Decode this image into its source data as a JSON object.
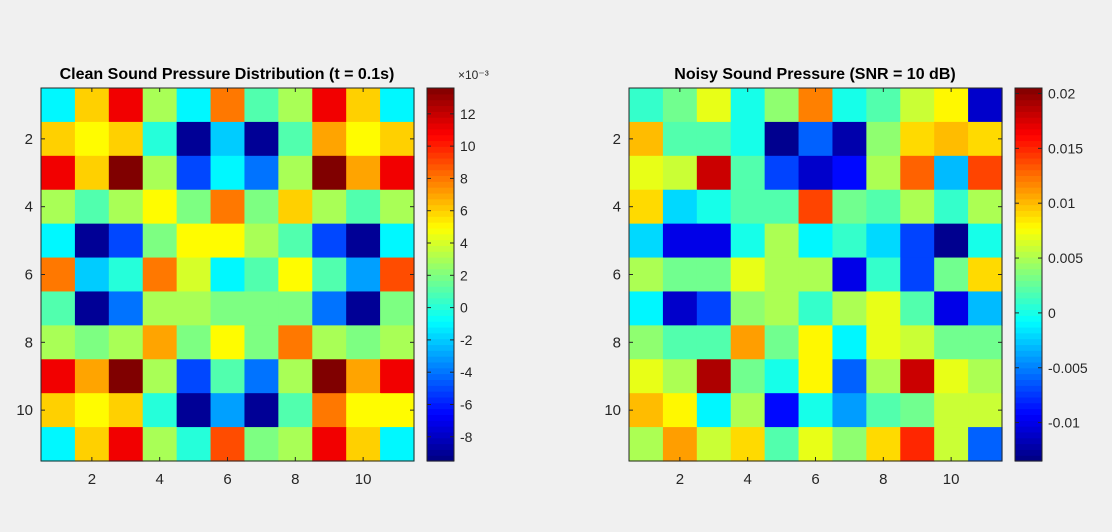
{
  "chart_data": [
    {
      "type": "heatmap",
      "title": "Clean Sound Pressure Distribution (t = 0.1s)",
      "xlabel": "",
      "ylabel": "",
      "x_ticks": [
        2,
        4,
        6,
        8,
        10
      ],
      "y_ticks": [
        2,
        4,
        6,
        8,
        10
      ],
      "colormap": "jet",
      "clim": [
        -9.5,
        13.6
      ],
      "colorbar_ticks": [
        12,
        10,
        8,
        6,
        4,
        2,
        0,
        -2,
        -4,
        -6,
        -8
      ],
      "colorbar_exponent": "×10⁻³",
      "values": [
        [
          -1,
          6,
          11,
          3,
          -1,
          8,
          1,
          3,
          11,
          6,
          -1
        ],
        [
          6,
          5,
          6,
          0,
          -9,
          -2,
          -9,
          1,
          7,
          5,
          6
        ],
        [
          11,
          6,
          14,
          3,
          -5,
          -1,
          -4,
          3,
          14,
          7,
          11
        ],
        [
          3,
          1,
          3,
          5,
          2,
          8,
          2,
          6,
          3,
          1,
          3
        ],
        [
          -1,
          -9,
          -5,
          2,
          5,
          5,
          3,
          1,
          -5,
          -9,
          -1
        ],
        [
          8,
          -2,
          0,
          8,
          4,
          -1,
          1,
          5,
          1,
          -3,
          9
        ],
        [
          1,
          -9,
          -4,
          3,
          3,
          2,
          2,
          2,
          -4,
          -9,
          2
        ],
        [
          3,
          2,
          3,
          7,
          2,
          5,
          2,
          8,
          3,
          2,
          3
        ],
        [
          11,
          7,
          14,
          3,
          -5,
          1,
          -4,
          3,
          14,
          7,
          11
        ],
        [
          6,
          5,
          6,
          0,
          -9,
          -3,
          -9,
          1,
          8,
          5,
          5
        ],
        [
          -1,
          6,
          11,
          3,
          0,
          9,
          2,
          3,
          11,
          6,
          -1
        ]
      ]
    },
    {
      "type": "heatmap",
      "title": "Noisy Sound Pressure (SNR = 10 dB)",
      "xlabel": "",
      "ylabel": "",
      "x_ticks": [
        2,
        4,
        6,
        8,
        10
      ],
      "y_ticks": [
        2,
        4,
        6,
        8,
        10
      ],
      "colormap": "jet",
      "clim": [
        -0.0135,
        0.0205
      ],
      "colorbar_ticks": [
        "0.02",
        "0.015",
        "0.01",
        "0.005",
        "0",
        "-0.005",
        "-0.01"
      ],
      "values": [
        [
          0.001,
          0.003,
          0.007,
          0.0,
          0.004,
          0.012,
          0.0,
          0.002,
          0.006,
          0.008,
          -0.011
        ],
        [
          0.01,
          0.002,
          0.002,
          0.0,
          -0.013,
          -0.006,
          -0.012,
          0.004,
          0.009,
          0.01,
          0.009
        ],
        [
          0.007,
          0.006,
          0.018,
          0.002,
          -0.007,
          -0.011,
          -0.009,
          0.005,
          0.013,
          -0.003,
          0.014
        ],
        [
          0.009,
          -0.002,
          0.0,
          0.002,
          0.002,
          0.014,
          0.003,
          0.002,
          0.005,
          0.001,
          0.005
        ],
        [
          -0.002,
          -0.01,
          -0.01,
          0.0,
          0.005,
          -0.001,
          0.001,
          -0.002,
          -0.007,
          -0.013,
          0.0
        ],
        [
          0.005,
          0.003,
          0.003,
          0.007,
          0.005,
          0.005,
          -0.01,
          0.001,
          -0.007,
          0.003,
          0.009
        ],
        [
          -0.001,
          -0.011,
          -0.007,
          0.004,
          0.005,
          0.001,
          0.005,
          0.007,
          0.002,
          -0.01,
          -0.003
        ],
        [
          0.004,
          0.002,
          0.002,
          0.011,
          0.003,
          0.008,
          -0.001,
          0.007,
          0.006,
          0.003,
          0.003
        ],
        [
          0.007,
          0.005,
          0.019,
          0.003,
          0.0,
          0.008,
          -0.006,
          0.005,
          0.018,
          0.007,
          0.005
        ],
        [
          0.01,
          0.008,
          -0.001,
          0.005,
          -0.009,
          0.0,
          -0.004,
          0.002,
          0.003,
          0.006,
          0.006
        ],
        [
          0.005,
          0.011,
          0.006,
          0.009,
          0.002,
          0.007,
          0.004,
          0.009,
          0.015,
          0.006,
          -0.006
        ]
      ]
    }
  ]
}
